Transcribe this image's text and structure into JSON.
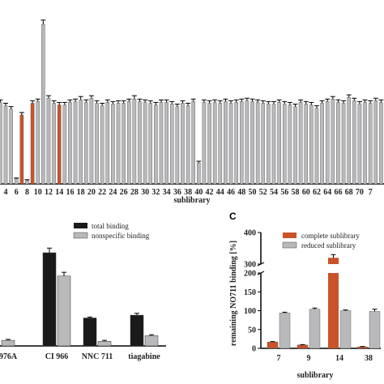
{
  "colors": {
    "gray": "#b9b9bc",
    "orange": "#c9532a",
    "black": "#1a1a1a",
    "axis": "#000000"
  },
  "panel_a": {
    "xlabel": "sublibrary",
    "tick_labels": [
      "4",
      "6",
      "8",
      "10",
      "12",
      "14",
      "16",
      "18",
      "20",
      "22",
      "24",
      "26",
      "28",
      "30",
      "32",
      "34",
      "36",
      "38",
      "40",
      "42",
      "44",
      "46",
      "48",
      "50",
      "52",
      "54",
      "56",
      "58",
      "60",
      "62",
      "64",
      "66",
      "68",
      "70",
      "7"
    ],
    "chart_data": {
      "type": "bar",
      "xlabel": "sublibrary",
      "ylim": [
        0,
        190
      ],
      "first_x": 3,
      "highlight_color_x": [
        7,
        9,
        14
      ],
      "values": [
        97,
        93,
        89,
        6,
        82,
        4,
        96,
        98,
        190,
        102,
        96,
        94,
        94,
        97,
        98,
        100,
        97,
        102,
        96,
        93,
        97,
        95,
        96,
        96,
        98,
        101,
        98,
        97,
        96,
        94,
        97,
        97,
        95,
        92,
        96,
        93,
        98,
        25,
        97,
        96,
        97,
        96,
        98,
        96,
        97,
        98,
        99,
        98,
        97,
        96,
        95,
        95,
        97,
        95,
        94,
        92,
        97,
        95,
        94,
        90,
        96,
        98,
        101,
        97,
        96,
        103,
        99,
        95,
        97,
        96,
        99,
        97
      ],
      "errors": [
        3,
        3,
        3,
        1,
        3,
        1,
        3,
        3,
        5,
        3,
        3,
        3,
        3,
        3,
        3,
        4,
        3,
        3,
        3,
        3,
        3,
        3,
        3,
        3,
        3,
        4,
        3,
        3,
        3,
        3,
        3,
        3,
        3,
        3,
        3,
        3,
        3,
        2,
        3,
        3,
        3,
        3,
        3,
        3,
        3,
        3,
        3,
        3,
        3,
        3,
        3,
        3,
        3,
        3,
        3,
        3,
        3,
        3,
        3,
        3,
        3,
        3,
        3,
        3,
        3,
        3,
        3,
        3,
        3,
        3,
        3,
        3
      ]
    }
  },
  "panel_b": {
    "categories": [
      "976A",
      "CI 966",
      "NNC 711",
      "tiagabine"
    ],
    "legend": [
      "total binding",
      "nonspecific binding"
    ],
    "chart_data": {
      "type": "bar",
      "categories": [
        "976A",
        "CI 966",
        "NNC 711",
        "tiagabine"
      ],
      "series": [
        {
          "name": "total binding",
          "values": [
            null,
            100,
            30,
            33
          ]
        },
        {
          "name": "nonspecific binding",
          "values": [
            6,
            75,
            5,
            11
          ]
        }
      ],
      "errors": [
        [
          null,
          5,
          1,
          2
        ],
        [
          1,
          4,
          1,
          1
        ]
      ]
    }
  },
  "panel_c": {
    "label": "C",
    "ylabel": "remaining NO711 binding [%]",
    "xlabel": "sublibrary",
    "y_ticks": [
      "0",
      "50",
      "100",
      "150",
      "200",
      "300",
      "400"
    ],
    "legend": [
      "complete sublibrary",
      "reduced sublibrary"
    ],
    "chart_data": {
      "type": "bar",
      "categories": [
        "7",
        "9",
        "14",
        "38"
      ],
      "series": [
        {
          "name": "complete sublibrary",
          "values": [
            17,
            9,
            320,
            4
          ]
        },
        {
          "name": "reduced sublibrary",
          "values": [
            94,
            104,
            100,
            98
          ]
        }
      ],
      "errors": [
        [
          1,
          1,
          10,
          1
        ],
        [
          2,
          3,
          2,
          6
        ]
      ],
      "y_axis_break": [
        200,
        300
      ],
      "ylim": [
        0,
        400
      ]
    }
  }
}
